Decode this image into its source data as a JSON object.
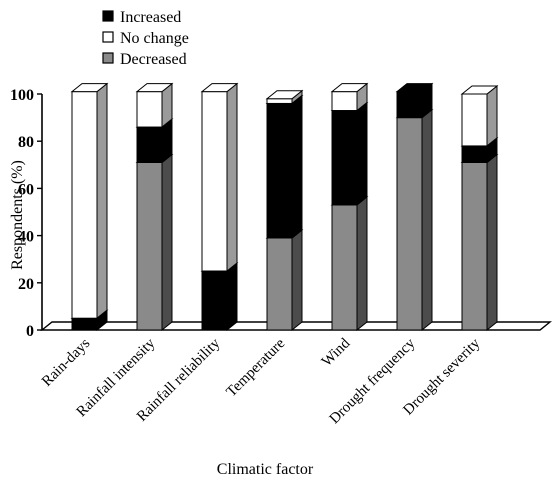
{
  "chart_data": {
    "type": "bar",
    "stacked": true,
    "three_d": true,
    "categories": [
      "Rain-days",
      "Rainfall intensity",
      "Rainfall reliability",
      "Temperature",
      "Wind",
      "Drought frequency",
      "Drought severity"
    ],
    "series": [
      {
        "name": "Decreased",
        "color": "#8a8a8a",
        "values": [
          0,
          71,
          0,
          39,
          53,
          90,
          71
        ]
      },
      {
        "name": "Increased",
        "color": "#000000",
        "values": [
          5,
          15,
          25,
          57,
          40,
          11,
          7
        ]
      },
      {
        "name": "No change",
        "color": "#ffffff",
        "values": [
          96,
          15,
          76,
          2,
          8,
          0,
          22
        ]
      }
    ],
    "legend_order": [
      "Increased",
      "No change",
      "Decreased"
    ],
    "legend_position": "top-left",
    "xlabel": "Climatic factor",
    "ylabel": "Respondents (%)",
    "ylim": [
      0,
      100
    ],
    "yticks": [
      "0",
      "20",
      "40",
      "60",
      "80",
      "100"
    ],
    "grid": false
  }
}
